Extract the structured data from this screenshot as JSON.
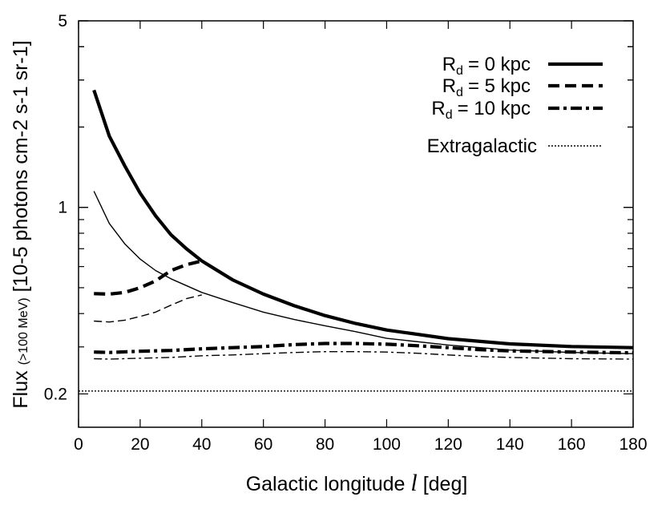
{
  "chart_data": {
    "type": "line",
    "title": "",
    "xlabel": "Galactic longitude",
    "xlabel_symbol": "l",
    "xlabel_unit": "[deg]",
    "ylabel": "Flux",
    "ylabel_energy": "(>100 MeV)",
    "ylabel_unit": "[10-5 photons cm-2 s-1 sr-1]",
    "xlim": [
      0,
      180
    ],
    "ylim": [
      0.15,
      5
    ],
    "yscale": "log",
    "x_ticks": [
      0,
      20,
      40,
      60,
      80,
      100,
      120,
      140,
      160,
      180
    ],
    "y_ticks_labeled": [
      {
        "value": 0.2,
        "label": "0.2"
      },
      {
        "value": 1,
        "label": "1"
      },
      {
        "value": 5,
        "label": "5"
      }
    ],
    "legend_position": "top-right",
    "legend": [
      {
        "label": "Rd = 0 kpc",
        "sym": "R",
        "sub": "d",
        "rest": "= 0 kpc",
        "style": "solid-thick"
      },
      {
        "label": "Rd = 5 kpc",
        "sym": "R",
        "sub": "d",
        "rest": "= 5 kpc",
        "style": "dashed-thick"
      },
      {
        "label": "Rd = 10 kpc",
        "sym": "R",
        "sub": "d",
        "rest": "= 10 kpc",
        "style": "dashdot-thick"
      },
      {
        "label": "Extragalactic",
        "style": "dotted"
      }
    ],
    "series": [
      {
        "name": "Rd = 0 kpc",
        "style": "solid-thick",
        "x": [
          5,
          10,
          15,
          20,
          25,
          30,
          35,
          40,
          50,
          60,
          70,
          80,
          90,
          100,
          120,
          140,
          160,
          180
        ],
        "y": [
          2.75,
          1.85,
          1.43,
          1.13,
          0.93,
          0.79,
          0.7,
          0.63,
          0.535,
          0.473,
          0.428,
          0.393,
          0.367,
          0.347,
          0.322,
          0.308,
          0.301,
          0.298
        ]
      },
      {
        "name": "Rd = 0 kpc (thin)",
        "style": "solid-thin",
        "x": [
          5,
          10,
          15,
          20,
          25,
          30,
          40,
          50,
          60,
          70,
          80,
          90,
          100,
          120,
          140,
          160,
          180
        ],
        "y": [
          1.15,
          0.87,
          0.73,
          0.64,
          0.58,
          0.54,
          0.48,
          0.44,
          0.405,
          0.38,
          0.36,
          0.342,
          0.323,
          0.305,
          0.292,
          0.286,
          0.283
        ]
      },
      {
        "name": "Rd = 5 kpc",
        "style": "dashed-thick",
        "x": [
          5,
          10,
          15,
          20,
          25,
          30,
          35,
          40
        ],
        "y": [
          0.475,
          0.473,
          0.48,
          0.5,
          0.53,
          0.58,
          0.61,
          0.63
        ]
      },
      {
        "name": "Rd = 5 kpc (thin)",
        "style": "dashed-thin",
        "x": [
          5,
          10,
          15,
          20,
          25,
          30,
          35,
          40
        ],
        "y": [
          0.375,
          0.372,
          0.378,
          0.39,
          0.405,
          0.43,
          0.455,
          0.47
        ]
      },
      {
        "name": "Rd = 10 kpc",
        "style": "dashdot-thick",
        "x": [
          5,
          10,
          20,
          30,
          40,
          50,
          60,
          70,
          80,
          90,
          100,
          110,
          120,
          130,
          140,
          160,
          180
        ],
        "y": [
          0.287,
          0.286,
          0.289,
          0.291,
          0.295,
          0.298,
          0.301,
          0.306,
          0.309,
          0.309,
          0.307,
          0.303,
          0.298,
          0.293,
          0.29,
          0.287,
          0.285
        ]
      },
      {
        "name": "Rd = 10 kpc (thin)",
        "style": "dashdot-thin",
        "x": [
          5,
          10,
          20,
          30,
          40,
          50,
          60,
          70,
          80,
          90,
          100,
          110,
          120,
          130,
          140,
          160,
          180
        ],
        "y": [
          0.271,
          0.27,
          0.272,
          0.274,
          0.278,
          0.28,
          0.283,
          0.286,
          0.288,
          0.288,
          0.287,
          0.284,
          0.28,
          0.276,
          0.274,
          0.271,
          0.27
        ]
      },
      {
        "name": "Extragalactic",
        "style": "dotted",
        "x": [
          0,
          180
        ],
        "y": [
          0.205,
          0.205
        ]
      }
    ]
  }
}
